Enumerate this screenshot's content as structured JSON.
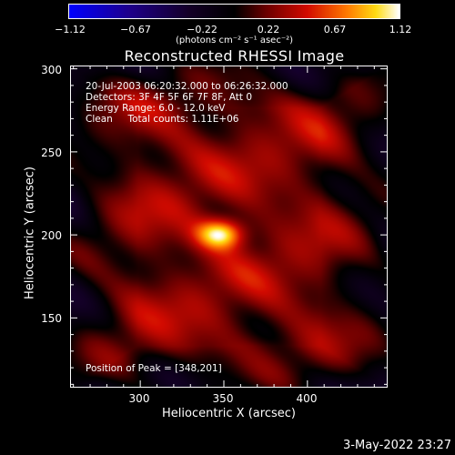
{
  "colorbar": {
    "ticks": [
      "−1.12",
      "−0.67",
      "−0.22",
      "0.22",
      "0.67",
      "1.12"
    ],
    "units": "(photons cm⁻² s⁻¹ asec⁻²)"
  },
  "chart_data": {
    "type": "heatmap",
    "title": "Reconstructed RHESSI Image",
    "xlabel": "Heliocentric X (arcsec)",
    "ylabel": "Heliocentric Y (arcsec)",
    "xlim": [
      258,
      448
    ],
    "ylim": [
      108,
      302
    ],
    "xticks": [
      300,
      350,
      400
    ],
    "yticks": [
      150,
      200,
      250,
      300
    ],
    "colorbar_range": [
      -1.12,
      1.12
    ],
    "peak": [
      348,
      201
    ]
  },
  "info": {
    "line1": "20-Jul-2003 06:20:32.000 to 06:26:32.000",
    "line2": "Detectors: 3F 4F 5F 6F 7F 8F, Att 0",
    "line3": "Energy Range: 6.0 - 12.0 keV",
    "line4": "Clean     Total counts: 1.11E+06",
    "peak": "Position of Peak = [348,201]"
  },
  "datestamp": "3-May-2022 23:27"
}
